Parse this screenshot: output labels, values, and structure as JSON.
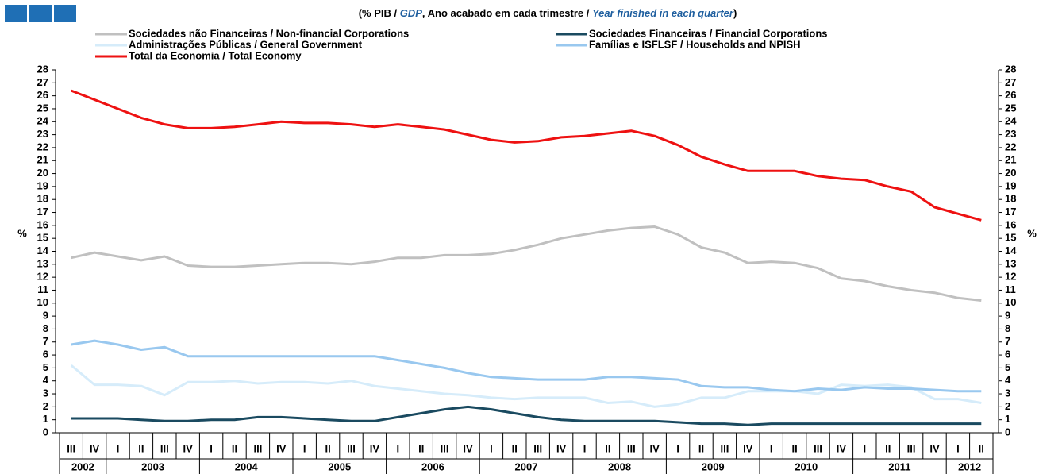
{
  "chart_data": {
    "type": "line",
    "title": [
      {
        "text": "(% PIB / "
      },
      {
        "text": "GDP",
        "emphasis": true
      },
      {
        "text": ", Ano acabado em cada trimestre / "
      },
      {
        "text": "Year finished in each quarter",
        "emphasis": true
      },
      {
        "text": ")"
      }
    ],
    "ylabel": "%",
    "y2label": "%",
    "categories": [
      "III",
      "IV",
      "I",
      "II",
      "III",
      "IV",
      "I",
      "II",
      "III",
      "IV",
      "I",
      "II",
      "III",
      "IV",
      "I",
      "II",
      "III",
      "IV",
      "I",
      "II",
      "III",
      "IV",
      "I",
      "II",
      "III",
      "IV",
      "I",
      "II",
      "III",
      "IV",
      "I",
      "II",
      "III",
      "IV",
      "I",
      "II",
      "III",
      "IV",
      "I",
      "II"
    ],
    "years": [
      "2002",
      "2003",
      "2004",
      "2005",
      "2006",
      "2007",
      "2008",
      "2009",
      "2010",
      "2011",
      "2012"
    ],
    "ylim": [
      0,
      28
    ],
    "yticks": [
      0,
      1,
      2,
      3,
      4,
      5,
      6,
      7,
      8,
      9,
      10,
      11,
      12,
      13,
      14,
      15,
      16,
      17,
      18,
      19,
      20,
      21,
      22,
      23,
      24,
      25,
      26,
      27,
      28
    ],
    "y2lim": [
      0,
      28
    ],
    "y2ticks": [
      0,
      1,
      2,
      3,
      4,
      5,
      6,
      7,
      8,
      9,
      10,
      11,
      12,
      13,
      14,
      15,
      16,
      17,
      18,
      19,
      20,
      21,
      22,
      23,
      24,
      25,
      26,
      27,
      28
    ],
    "grid": false,
    "series": [
      {
        "name": "Sociedades não Financeiras / Non-financial Corporations",
        "color": "#c0c0c0",
        "values": [
          13.5,
          13.9,
          13.6,
          13.3,
          13.6,
          12.9,
          12.8,
          12.8,
          12.9,
          13.0,
          13.1,
          13.1,
          13.0,
          13.2,
          13.5,
          13.5,
          13.7,
          13.7,
          13.8,
          14.1,
          14.5,
          15.0,
          15.3,
          15.6,
          15.8,
          15.9,
          15.3,
          14.3,
          13.9,
          13.1,
          13.2,
          13.1,
          12.7,
          11.9,
          11.7,
          11.3,
          11.0,
          10.8,
          10.4,
          10.2
        ]
      },
      {
        "name": "Sociedades Financeiras / Financial Corporations",
        "color": "#1a4a60",
        "values": [
          1.1,
          1.1,
          1.1,
          1.0,
          0.9,
          0.9,
          1.0,
          1.0,
          1.2,
          1.2,
          1.1,
          1.0,
          0.9,
          0.9,
          1.2,
          1.5,
          1.8,
          2.0,
          1.8,
          1.5,
          1.2,
          1.0,
          0.9,
          0.9,
          0.9,
          0.9,
          0.8,
          0.7,
          0.7,
          0.6,
          0.7,
          0.7,
          0.7,
          0.7,
          0.7,
          0.7,
          0.7,
          0.7,
          0.7,
          0.7
        ]
      },
      {
        "name": "Administrações Públicas / General Government",
        "color": "#d6ecfa",
        "values": [
          5.2,
          3.7,
          3.7,
          3.6,
          2.9,
          3.9,
          3.9,
          4.0,
          3.8,
          3.9,
          3.9,
          3.8,
          4.0,
          3.6,
          3.4,
          3.2,
          3.0,
          2.9,
          2.7,
          2.6,
          2.7,
          2.7,
          2.7,
          2.3,
          2.4,
          2.0,
          2.2,
          2.7,
          2.7,
          3.2,
          3.2,
          3.2,
          3.0,
          3.7,
          3.6,
          3.7,
          3.5,
          2.6,
          2.6,
          2.3
        ]
      },
      {
        "name": "Famílias e ISFLSF / Households and NPISH",
        "color": "#99c8ef",
        "values": [
          6.8,
          7.1,
          6.8,
          6.4,
          6.6,
          5.9,
          5.9,
          5.9,
          5.9,
          5.9,
          5.9,
          5.9,
          5.9,
          5.9,
          5.6,
          5.3,
          5.0,
          4.6,
          4.3,
          4.2,
          4.1,
          4.1,
          4.1,
          4.3,
          4.3,
          4.2,
          4.1,
          3.6,
          3.5,
          3.5,
          3.3,
          3.2,
          3.4,
          3.3,
          3.5,
          3.4,
          3.4,
          3.3,
          3.2,
          3.2
        ]
      },
      {
        "name": "Total da Economia / Total Economy",
        "color": "#ee1111",
        "values": [
          26.4,
          25.7,
          25.0,
          24.3,
          23.8,
          23.5,
          23.5,
          23.6,
          23.8,
          24.0,
          23.9,
          23.9,
          23.8,
          23.6,
          23.8,
          23.6,
          23.4,
          23.0,
          22.6,
          22.4,
          22.5,
          22.8,
          22.9,
          23.1,
          23.3,
          22.9,
          22.2,
          21.3,
          20.7,
          20.2,
          20.2,
          20.2,
          19.8,
          19.6,
          19.5,
          19.0,
          18.6,
          17.4,
          16.9,
          16.4
        ]
      }
    ]
  }
}
